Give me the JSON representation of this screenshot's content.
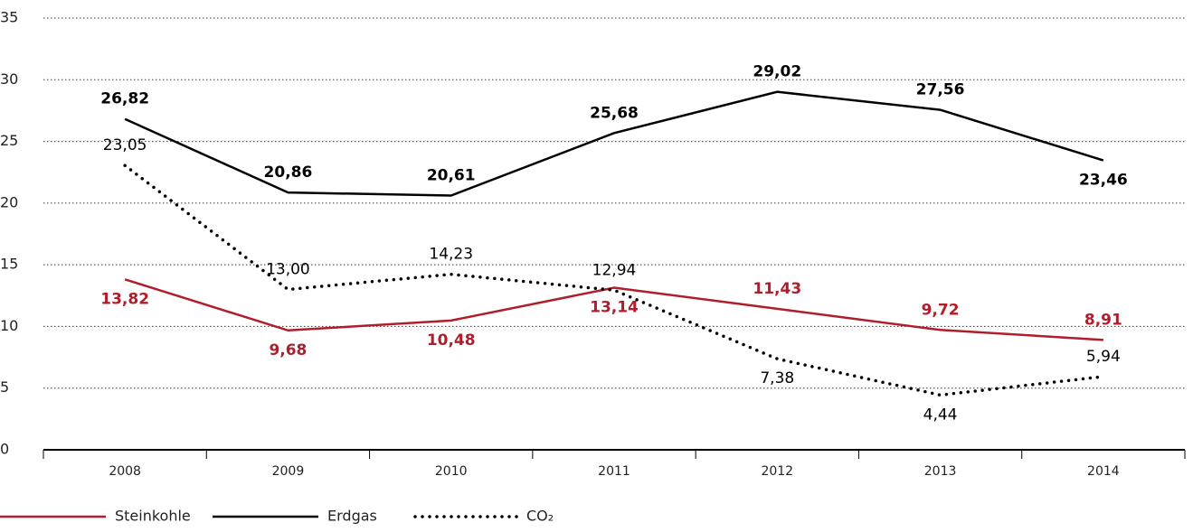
{
  "chart_data": {
    "type": "line",
    "categories": [
      "2008",
      "2009",
      "2010",
      "2011",
      "2012",
      "2013",
      "2014"
    ],
    "series": [
      {
        "name": "Steinkohle",
        "color": "#b01e2b",
        "dash": "solid",
        "values": [
          13.82,
          9.68,
          10.48,
          13.14,
          11.43,
          9.72,
          8.91
        ],
        "value_labels": [
          "13,82",
          "9,68",
          "10,48",
          "13,14",
          "11,43",
          "9,72",
          "8,91"
        ]
      },
      {
        "name": "Erdgas",
        "color": "#000000",
        "dash": "solid",
        "values": [
          26.82,
          20.86,
          20.61,
          25.68,
          29.02,
          27.56,
          23.46
        ],
        "value_labels": [
          "26,82",
          "20,86",
          "20,61",
          "25,68",
          "29,02",
          "27,56",
          "23,46"
        ]
      },
      {
        "name": "CO₂",
        "color": "#000000",
        "dash": "dotted",
        "values": [
          23.05,
          13.0,
          14.23,
          12.94,
          7.38,
          4.44,
          5.94
        ],
        "value_labels": [
          "23,05",
          "13,00",
          "14,23",
          "12,94",
          "7,38",
          "4,44",
          "5,94"
        ]
      }
    ],
    "ylim": [
      0,
      35
    ],
    "yticks": [
      0,
      5,
      10,
      15,
      20,
      25,
      30,
      35
    ],
    "grid": true,
    "legend": "bottom"
  }
}
